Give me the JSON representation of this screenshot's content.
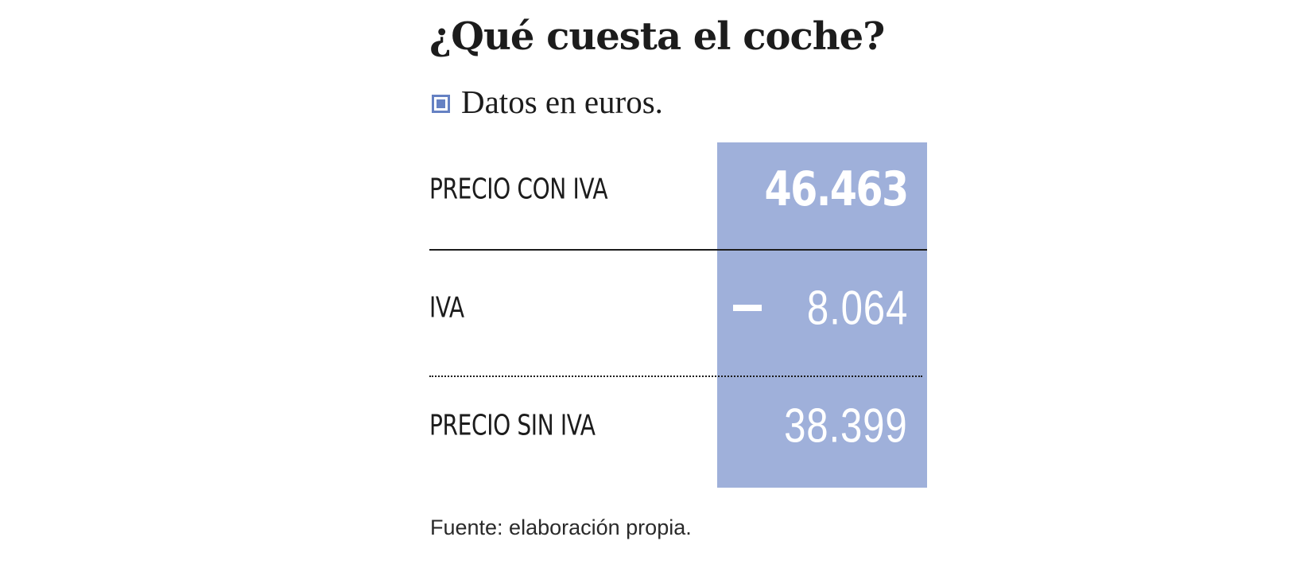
{
  "title": "¿Qué cuesta el coche?",
  "subtitle": "Datos en euros.",
  "source": "Fuente: elaboración propia.",
  "colors": {
    "accent": "#6581c3",
    "column": "#9fb0da",
    "text": "#1c1c1c",
    "value_text": "#ffffff"
  },
  "chart_data": {
    "type": "table",
    "title": "¿Qué cuesta el coche?",
    "subtitle": "Datos en euros.",
    "rows": [
      {
        "label": "PRECIO CON IVA",
        "operator": "",
        "value": "46.463",
        "number": 46463
      },
      {
        "label": "IVA",
        "operator": "minus",
        "value": "8.064",
        "number": 8064
      },
      {
        "label": "PRECIO SIN IVA",
        "operator": "",
        "value": "38.399",
        "number": 38399
      }
    ],
    "source": "Fuente: elaboración propia."
  }
}
